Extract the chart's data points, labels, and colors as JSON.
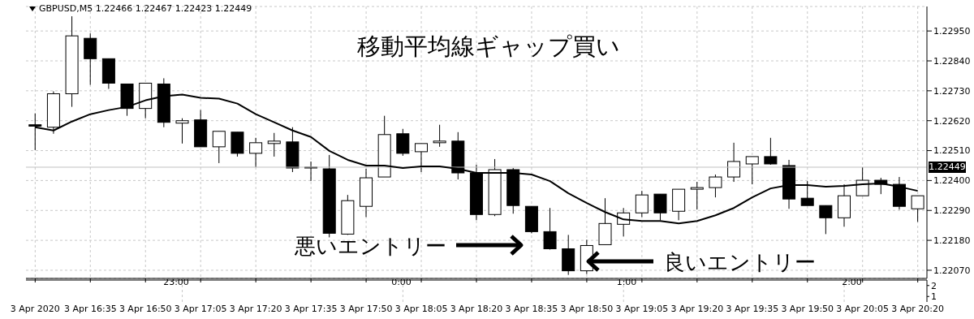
{
  "chart_data": [
    {
      "type": "candlestick",
      "title": "移動平均線ギャップ買い",
      "subtitle": "GBPUSD,M5  1.22466 1.22467 1.22423 1.22449",
      "categories": [
        "3 Apr 2020",
        null,
        null,
        "3 Apr 16:35",
        null,
        null,
        "3 Apr 16:50",
        null,
        null,
        "3 Apr 17:05",
        null,
        null,
        "3 Apr 17:20",
        null,
        null,
        "3 Apr 17:35",
        null,
        null,
        "3 Apr 17:50",
        null,
        null,
        "3 Apr 18:05",
        null,
        null,
        "3 Apr 18:20",
        null,
        null,
        "3 Apr 18:35",
        null,
        null,
        "3 Apr 18:50",
        null,
        null,
        "3 Apr 19:05",
        null,
        null,
        "3 Apr 19:20",
        null,
        null,
        "3 Apr 19:35",
        null,
        null,
        "3 Apr 19:50",
        null,
        null,
        "3 Apr 20:05",
        null,
        null,
        "3 Apr 20:20"
      ],
      "ohlc": [
        [
          1.22605,
          1.22647,
          1.22512,
          1.226
        ],
        [
          1.22596,
          1.22728,
          1.22572,
          1.22719
        ],
        [
          1.22719,
          1.23004,
          1.22671,
          1.22932
        ],
        [
          1.22923,
          1.22941,
          1.22752,
          1.22848
        ],
        [
          1.22848,
          1.22848,
          1.22737,
          1.22758
        ],
        [
          1.22755,
          1.22755,
          1.22638,
          1.22665
        ],
        [
          1.22665,
          1.22758,
          1.22629,
          1.22758
        ],
        [
          1.22755,
          1.22776,
          1.22596,
          1.22614
        ],
        [
          1.22611,
          1.22629,
          1.22536,
          1.2262
        ],
        [
          1.22623,
          1.22659,
          1.22524,
          1.22524
        ],
        [
          1.22524,
          1.22581,
          1.22464,
          1.22581
        ],
        [
          1.22578,
          1.22578,
          1.22488,
          1.225
        ],
        [
          1.225,
          1.22557,
          1.22449,
          1.22539
        ],
        [
          1.22536,
          1.22575,
          1.22488,
          1.22545
        ],
        [
          1.22542,
          1.22596,
          1.22431,
          1.22446
        ],
        [
          1.22449,
          1.2247,
          1.22398,
          1.22446
        ],
        [
          1.22443,
          1.22494,
          1.22191,
          1.22206
        ],
        [
          1.22203,
          1.22347,
          1.222,
          1.22326
        ],
        [
          1.22305,
          1.22443,
          1.22266,
          1.2241
        ],
        [
          1.22413,
          1.22638,
          1.22413,
          1.22569
        ],
        [
          1.22572,
          1.2259,
          1.22491,
          1.225
        ],
        [
          1.22506,
          1.22536,
          1.22431,
          1.22536
        ],
        [
          1.22539,
          1.22605,
          1.22524,
          1.22545
        ],
        [
          1.22545,
          1.22578,
          1.22404,
          1.22428
        ],
        [
          1.22428,
          1.22458,
          1.22254,
          1.22275
        ],
        [
          1.22275,
          1.22479,
          1.22269,
          1.2244
        ],
        [
          1.2244,
          1.22446,
          1.22278,
          1.22308
        ],
        [
          1.22305,
          1.22305,
          1.22206,
          1.22212
        ],
        [
          1.22212,
          1.22299,
          1.22146,
          1.22149
        ],
        [
          1.22149,
          1.222,
          1.22053,
          1.22068
        ],
        [
          1.22068,
          1.22182,
          1.22056,
          1.22161
        ],
        [
          1.22164,
          1.22335,
          1.22164,
          1.22242
        ],
        [
          1.22239,
          1.22299,
          1.22194,
          1.22281
        ],
        [
          1.22281,
          1.22362,
          1.22266,
          1.22347
        ],
        [
          1.2235,
          1.2235,
          1.22254,
          1.22281
        ],
        [
          1.22287,
          1.22368,
          1.22254,
          1.22368
        ],
        [
          1.22368,
          1.22395,
          1.22293,
          1.22374
        ],
        [
          1.22374,
          1.22422,
          1.22338,
          1.22413
        ],
        [
          1.22413,
          1.22539,
          1.22395,
          1.2247
        ],
        [
          1.22461,
          1.22488,
          1.22386,
          1.22488
        ],
        [
          1.22488,
          1.22557,
          1.22458,
          1.22461
        ],
        [
          1.22455,
          1.22476,
          1.22296,
          1.22332
        ],
        [
          1.22335,
          1.22398,
          1.22308,
          1.22308
        ],
        [
          1.22308,
          1.22308,
          1.22203,
          1.22263
        ],
        [
          1.22263,
          1.22386,
          1.2223,
          1.22344
        ],
        [
          1.22344,
          1.22449,
          1.22344,
          1.22401
        ],
        [
          1.22401,
          1.2241,
          1.2235,
          1.22386
        ],
        [
          1.22386,
          1.22413,
          1.22293,
          1.22305
        ],
        [
          1.22296,
          1.22344,
          1.22248,
          1.22344
        ]
      ],
      "series": [
        {
          "type": "line",
          "color": "#000000",
          "values": [
            1.22596,
            1.22584,
            1.22617,
            1.22644,
            1.22659,
            1.22671,
            1.22695,
            1.2271,
            1.22716,
            1.22704,
            1.22701,
            1.22683,
            1.22644,
            1.22614,
            1.22584,
            1.2256,
            1.22509,
            1.22476,
            1.22455,
            1.22455,
            1.22446,
            1.22452,
            1.22452,
            1.22443,
            1.22428,
            1.22428,
            1.22428,
            1.22422,
            1.22398,
            1.22353,
            1.22317,
            1.22284,
            1.22257,
            1.22251,
            1.22251,
            1.22242,
            1.22251,
            1.22272,
            1.22299,
            1.22338,
            1.22371,
            1.22383,
            1.22383,
            1.22377,
            1.2238,
            1.22386,
            1.22389,
            1.22377,
            1.22362
          ]
        }
      ],
      "ylim": [
        1.2204,
        1.2304
      ],
      "yticks": [
        {
          "value": 1.2207,
          "label": "1.22070"
        },
        {
          "value": 1.2218,
          "label": "1.22180"
        },
        {
          "value": 1.2229,
          "label": "1.22290"
        },
        {
          "value": 1.224,
          "label": "1.22400"
        },
        {
          "value": 1.2251,
          "label": "1.22510"
        },
        {
          "value": 1.2262,
          "label": "1.22620"
        },
        {
          "value": 1.2273,
          "label": "1.22730"
        },
        {
          "value": 1.2284,
          "label": "1.22840"
        },
        {
          "value": 1.2295,
          "label": "1.22950"
        }
      ],
      "ref_lines": [
        {
          "axis": "y",
          "value": 1.22449,
          "label": "1.22449",
          "color": "#c0c0c0"
        }
      ],
      "grid": true,
      "annotations": [
        "悪いエントリー",
        "良いエントリー"
      ]
    },
    {
      "type": "line",
      "categories": [
        null,
        null,
        null,
        null,
        null,
        null,
        null,
        null,
        "23:00",
        null,
        null,
        null,
        null,
        null,
        null,
        null,
        null,
        null,
        null,
        null,
        "0:00",
        null,
        null,
        null,
        null,
        null,
        null,
        null,
        null,
        null,
        null,
        null,
        "1:00",
        null,
        null,
        null,
        null,
        null,
        null,
        null,
        null,
        null,
        null,
        null,
        "2:00",
        null,
        null,
        null,
        null
      ],
      "values": [
        null,
        null,
        null,
        null,
        null,
        null,
        null,
        null,
        null,
        null,
        null,
        null,
        null,
        null,
        null,
        null,
        null,
        null,
        null,
        null,
        null,
        null,
        null,
        null,
        null,
        null,
        null,
        null,
        null,
        null,
        null,
        null,
        null,
        null,
        null,
        null,
        null,
        null,
        null,
        null,
        null,
        null,
        null,
        null,
        null,
        null,
        null,
        null,
        null
      ],
      "ylim": [
        0.5,
        2.5
      ],
      "yticks": [
        1,
        2
      ],
      "grid": "x"
    }
  ]
}
